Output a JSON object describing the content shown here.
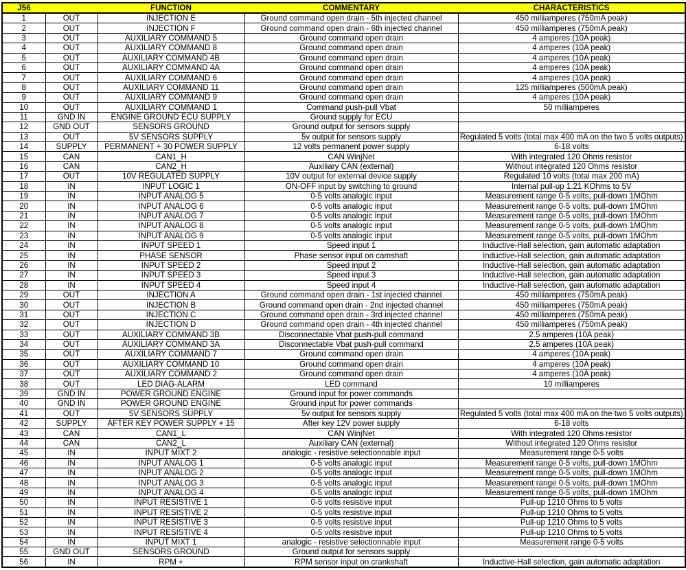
{
  "header": {
    "pin": "J56",
    "direction": "",
    "function": "FUNCTION",
    "commentary": "COMMENTARY",
    "characteristics": "CHARACTERISTICS"
  },
  "header_color": "#FFFF00",
  "rows": [
    [
      "1",
      "OUT",
      "INJECTION E",
      "Ground command open drain - 5th injected channel",
      "450 milliamperes (750mA peak)"
    ],
    [
      "2",
      "OUT",
      "INJECTION F",
      "Ground command open drain - 6th injected channel",
      "450 milliamperes (750mA peak)"
    ],
    [
      "3",
      "OUT",
      "AUXILIARY COMMAND 5",
      "Ground command open drain",
      "4 amperes (10A peak)"
    ],
    [
      "4",
      "OUT",
      "AUXILIARY COMMAND 8",
      "Ground command open drain",
      "4 amperes (10A peak)"
    ],
    [
      "5",
      "OUT",
      "AUXILIARY COMMAND 4B",
      "Ground command open drain",
      "4 amperes (10A peak)"
    ],
    [
      "6",
      "OUT",
      "AUXILIARY COMMAND 4A",
      "Ground command open drain",
      "4 amperes (10A peak)"
    ],
    [
      "7",
      "OUT",
      "AUXILIARY COMMAND 6",
      "Ground command open drain",
      "4 amperes (10A peak)"
    ],
    [
      "8",
      "OUT",
      "AUXILIARY COMMAND 11",
      "Ground command open drain",
      "125 milliamperes (500mA peak)"
    ],
    [
      "9",
      "OUT",
      "AUXILIARY COMMAND 9",
      "Ground command open drain",
      "4 amperes (10A peak)"
    ],
    [
      "10",
      "OUT",
      "AUXILIARY COMMAND 1",
      "Command push-pull Vbat",
      "50 milliamperes"
    ],
    [
      "11",
      "GND IN",
      "ENGINE GROUND ECU SUPPLY",
      "Ground supply for ECU",
      ""
    ],
    [
      "12",
      "GND OUT",
      "SENSORS GROUND",
      "Ground output for sensors supply",
      ""
    ],
    [
      "13",
      "OUT",
      "5V SENSORS SUPPLY",
      "5v output for sensors supply",
      "Regulated 5 volts (total max 400 mA on the two 5 volts outputs)"
    ],
    [
      "14",
      "SUPPLY",
      "PERMANENT + 30 POWER SUPPLY",
      "12 volts permanent power supply",
      "6-18 volts"
    ],
    [
      "15",
      "CAN",
      "CAN1_H",
      "CAN WinjNet",
      "With integrated 120 Ohms resistor"
    ],
    [
      "16",
      "CAN",
      "CAN2_H",
      "Auxiliary CAN (external)",
      "Without integrated 120 Ohms resistor"
    ],
    [
      "17",
      "OUT",
      "10V REGULATED SUPPLY",
      "10V output for external device supply",
      "Regulated 10 volts (total max 200 mA)"
    ],
    [
      "18",
      "IN",
      "INPUT LOGIC 1",
      "ON-OFF input by switching to ground",
      "Internal pull-up 1.21 KOhms to 5V"
    ],
    [
      "19",
      "IN",
      "INPUT ANALOG 5",
      "0-5 volts analogic input",
      "Measurement range 0-5 volts, pull-down 1MOhm"
    ],
    [
      "20",
      "IN",
      "INPUT ANALOG 6",
      "0-5 volts analogic input",
      "Measurement range 0-5 volts, pull-down 1MOhm"
    ],
    [
      "21",
      "IN",
      "INPUT ANALOG 7",
      "0-5 volts analogic input",
      "Measurement range 0-5 volts, pull-down 1MOhm"
    ],
    [
      "22",
      "IN",
      "INPUT ANALOG 8",
      "0-5 volts analogic input",
      "Measurement range 0-5 volts, pull-down 1MOhm"
    ],
    [
      "23",
      "IN",
      "INPUT ANALOG 9",
      "0-5 volts analogic input",
      "Measurement range 0-5 volts, pull-down 1MOhm"
    ],
    [
      "24",
      "IN",
      "INPUT SPEED 1",
      "Speed input 1",
      "Inductive-Hall selection, gain automatic adaptation"
    ],
    [
      "25",
      "IN",
      "PHASE SENSOR",
      "Phase sensor input on camshaft",
      "Inductive-Hall selection, gain automatic adaptation"
    ],
    [
      "26",
      "IN",
      "INPUT SPEED 2",
      "Speed input 2",
      "Inductive-Hall selection, gain automatic adaptation"
    ],
    [
      "27",
      "IN",
      "INPUT SPEED 3",
      "Speed input 3",
      "Inductive-Hall selection, gain automatic adaptation"
    ],
    [
      "28",
      "IN",
      "INPUT SPEED 4",
      "Speed input 4",
      "Inductive-Hall selection, gain automatic adaptation"
    ],
    [
      "29",
      "OUT",
      "INJECTION A",
      "Ground command open drain - 1st injected channel",
      "450 milliamperes (750mA peak)"
    ],
    [
      "30",
      "OUT",
      "INJECTION B",
      "Ground command open drain - 2nd injected channel",
      "450 milliamperes (750mA peak)"
    ],
    [
      "31",
      "OUT",
      "INJECTION C",
      "Ground command open drain - 3rd injected channel",
      "450 milliamperes (750mA peak)"
    ],
    [
      "32",
      "OUT",
      "INJECTION D",
      "Ground command open drain - 4th injected channel",
      "450 milliamperes (750mA peak)"
    ],
    [
      "33",
      "OUT",
      "AUXILIARY COMMAND 3B",
      "Disconnectable Vbat push-pull command",
      "2.5 amperes (10A peak)"
    ],
    [
      "34",
      "OUT",
      "AUXILIARY COMMAND 3A",
      "Disconnectable Vbat push-pull command",
      "2.5 amperes (10A peak)"
    ],
    [
      "35",
      "OUT",
      "AUXILIARY COMMAND 7",
      "Ground command open drain",
      "4 amperes (10A peak)"
    ],
    [
      "36",
      "OUT",
      "AUXILIARY COMMAND 10",
      "Ground command open drain",
      "4 amperes (10A peak)"
    ],
    [
      "37",
      "OUT",
      "AUXILIARY COMMAND 2",
      "Ground command open drain",
      "4 amperes (10A peak)"
    ],
    [
      "38",
      "OUT",
      "LED DIAG-ALARM",
      "LED command",
      "10 milliamperes"
    ],
    [
      "39",
      "GND IN",
      "POWER GROUND ENGINE",
      "Ground input for power commands",
      ""
    ],
    [
      "40",
      "GND IN",
      "POWER GROUND ENGINE",
      "Ground input for power commands",
      ""
    ],
    [
      "41",
      "OUT",
      "5V SENSORS SUPPLY",
      "5v output for sensors supply",
      "Regulated 5 volts (total max 400 mA on the two 5 volts outputs)"
    ],
    [
      "42",
      "SUPPLY",
      "AFTER KEY POWER SUPPLY + 15",
      "After key 12V power supply",
      "6-18 volts"
    ],
    [
      "43",
      "CAN",
      "CAN1_L",
      "CAN WinjNet",
      "With integrated 120 Ohms resistor"
    ],
    [
      "44",
      "CAN",
      "CAN2_L",
      "Auxiliary CAN (external)",
      "Without integrated 120 Ohms resistor"
    ],
    [
      "45",
      "IN",
      "INPUT MIXT 2",
      "analogic - resistive selectionnable input",
      "Measurement range 0-5 volts"
    ],
    [
      "46",
      "IN",
      "INPUT ANALOG 1",
      "0-5 volts analogic input",
      "Measurement range 0-5 volts, pull-down 1MOhm"
    ],
    [
      "47",
      "IN",
      "INPUT ANALOG 2",
      "0-5 volts analogic input",
      "Measurement range 0-5 volts, pull-down 1MOhm"
    ],
    [
      "48",
      "IN",
      "INPUT ANALOG 3",
      "0-5 volts analogic input",
      "Measurement range 0-5 volts, pull-down 1MOhm"
    ],
    [
      "49",
      "IN",
      "INPUT ANALOG 4",
      "0-5 volts analogic input",
      "Measurement range 0-5 volts, pull-down 1MOhm"
    ],
    [
      "50",
      "IN",
      "INPUT RESISTIVE 1",
      "0-5 volts resistive input",
      "Pull-up 1210 Ohms to 5 volts"
    ],
    [
      "51",
      "IN",
      "INPUT RESISTIVE 2",
      "0-5 volts resistive input",
      "Pull-up 1210 Ohms to 5 volts"
    ],
    [
      "52",
      "IN",
      "INPUT RESISTIVE 3",
      "0-5 volts resistive input",
      "Pull-up 1210 Ohms to 5 volts"
    ],
    [
      "53",
      "IN",
      "INPUT RESISTIVE 4",
      "0-5 volts resistive input",
      "Pull-up 1210 Ohms to 5 volts"
    ],
    [
      "54",
      "IN",
      "INPUT MIXT 1",
      "analogic - resistive selectionnable input",
      "Measurement range 0-5 volts"
    ],
    [
      "55",
      "GND OUT",
      "SENSORS GROUND",
      "Ground output for sensors supply",
      ""
    ],
    [
      "56",
      "IN",
      "RPM +",
      "RPM sensor input on crankshaft",
      "Inductive-Hall selection, gain automatic adaptation"
    ]
  ]
}
